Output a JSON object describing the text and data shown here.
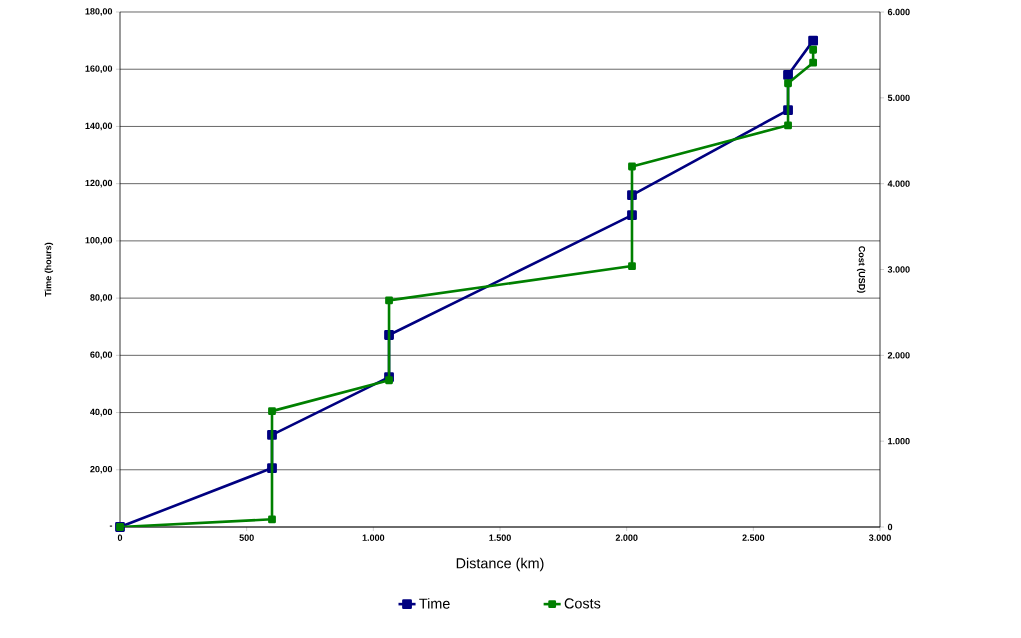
{
  "chart_data": {
    "type": "line",
    "xlabel": "Distance (km)",
    "ylabel": "Time (hours)",
    "y2label": "Cost (USD)",
    "xlim": [
      0,
      3000
    ],
    "xticks": [
      0,
      500,
      {
        "value": 1000,
        "label": "1.000"
      },
      {
        "value": 1500,
        "label": "1.500"
      },
      {
        "value": 2000,
        "label": "2.000"
      },
      {
        "value": 2500,
        "label": "2.500"
      },
      {
        "value": 3000,
        "label": "3.000"
      }
    ],
    "ylim": [
      0,
      180
    ],
    "yticks": [
      {
        "value": 0,
        "label": "-"
      },
      {
        "value": 20,
        "label": "20,00"
      },
      {
        "value": 40,
        "label": "40,00"
      },
      {
        "value": 60,
        "label": "60,00"
      },
      {
        "value": 80,
        "label": "80,00"
      },
      {
        "value": 100,
        "label": "100,00"
      },
      {
        "value": 120,
        "label": "120,00"
      },
      {
        "value": 140,
        "label": "140,00"
      },
      {
        "value": 160,
        "label": "160,00"
      },
      {
        "value": 180,
        "label": "180,00"
      }
    ],
    "y2lim": [
      0,
      6000
    ],
    "y2ticks": [
      0,
      {
        "value": 1000,
        "label": "1.000"
      },
      {
        "value": 2000,
        "label": "2.000"
      },
      {
        "value": 3000,
        "label": "3.000"
      },
      {
        "value": 4000,
        "label": "4.000"
      },
      {
        "value": 5000,
        "label": "5.000"
      },
      {
        "value": 6000,
        "label": "6.000"
      }
    ],
    "grid": "y",
    "legend": "bottom",
    "marker": "square",
    "line_style": "solid",
    "series": [
      {
        "name": "Time",
        "color": "#000080",
        "x": [
          0,
          600,
          600,
          1062,
          1062,
          2021,
          2021,
          2637,
          2637,
          2736
        ],
        "values": [
          0,
          20.6,
          32.2,
          52.4,
          67.1,
          109,
          116,
          145.7,
          158,
          170
        ]
      },
      {
        "name": "Costs",
        "color": "#008000",
        "axis": "y2",
        "x": [
          0,
          600,
          600,
          1062,
          1062,
          2021,
          2021,
          2637,
          2637,
          2736,
          2736
        ],
        "values": [
          0,
          90,
          1350,
          1710,
          2640,
          3040,
          4200,
          4680,
          5170,
          5410,
          5560
        ]
      }
    ]
  }
}
